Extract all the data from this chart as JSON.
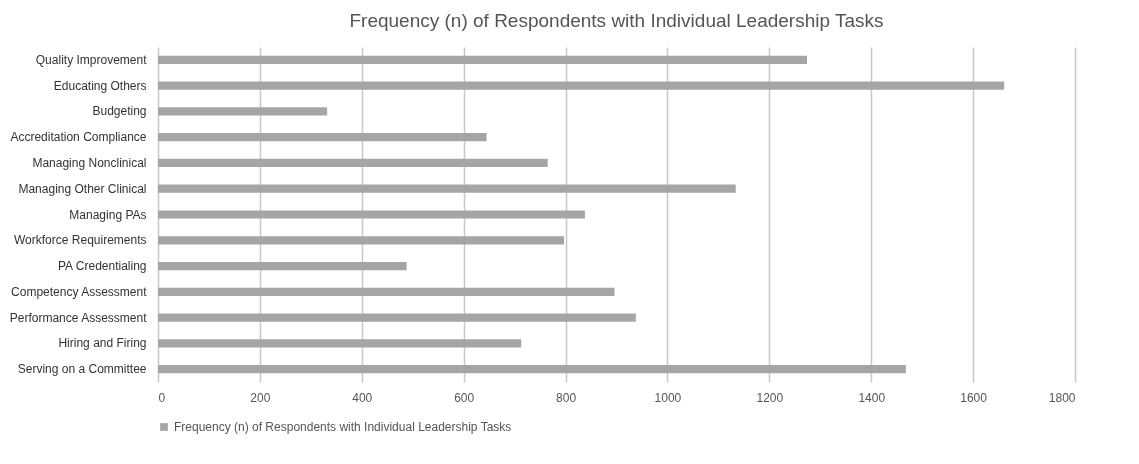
{
  "chart_data": {
    "type": "bar",
    "orientation": "horizontal",
    "title": "Frequency (n) of Respondents with Individual Leadership Tasks",
    "categories": [
      "Quality Improvement",
      "Educating Others",
      "Budgeting",
      "Accreditation Compliance",
      "Managing Nonclinical",
      "Managing Other Clinical ",
      "Managing PAs",
      "Workforce Requirements",
      "PA Credentialing",
      "Competency Assessment",
      "Performance Assessment",
      "Hiring and Firing",
      "Serving on a Committee"
    ],
    "series": [
      {
        "name": "Frequency (n) of Respondents with Individual Leadership Tasks",
        "color": "#a5a5a5",
        "values": [
          1274,
          1661,
          332,
          645,
          765,
          1134,
          838,
          797,
          488,
          896,
          938,
          713,
          1468
        ]
      }
    ],
    "xlim": [
      0,
      1800
    ],
    "xticks": [
      0,
      200,
      400,
      600,
      800,
      1000,
      1200,
      1400,
      1600,
      1800
    ],
    "grid": "x",
    "legend": "bottom"
  }
}
